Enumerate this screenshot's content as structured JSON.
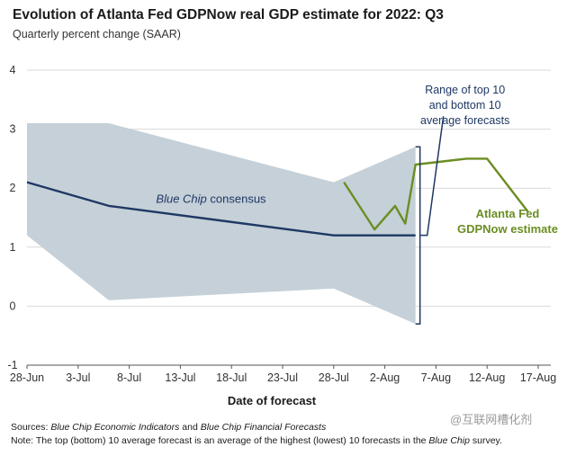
{
  "title": "Evolution of Atlanta Fed GDPNow real GDP estimate for 2022: Q3",
  "subtitle": "Quarterly percent change (SAAR)",
  "footnotes": {
    "sources_label": "Sources:",
    "sources_p1": "Blue Chip Economic Indicators",
    "sources_mid": " and ",
    "sources_p2": "Blue Chip Financial Forecasts",
    "note_label": "Note:",
    "note_text": "The top (bottom) 10 average forecast is an average of the highest (lowest) 10 forecasts in the",
    "note_italic": "Blue Chip",
    "note_end": "survey."
  },
  "watermark": "@互联网槽化剂",
  "chart_data": {
    "type": "line",
    "xlabel": "Date of forecast",
    "ylabel": "",
    "ylim": [
      -1,
      4
    ],
    "xlim": [
      "2022-06-28",
      "2022-08-19"
    ],
    "yticks": [
      -1,
      0,
      1,
      2,
      3,
      4
    ],
    "xticks": [
      {
        "date": "2022-06-28",
        "label": "28-Jun"
      },
      {
        "date": "2022-07-03",
        "label": "3-Jul"
      },
      {
        "date": "2022-07-08",
        "label": "8-Jul"
      },
      {
        "date": "2022-07-13",
        "label": "13-Jul"
      },
      {
        "date": "2022-07-18",
        "label": "18-Jul"
      },
      {
        "date": "2022-07-23",
        "label": "23-Jul"
      },
      {
        "date": "2022-07-28",
        "label": "28-Jul"
      },
      {
        "date": "2022-08-02",
        "label": "2-Aug"
      },
      {
        "date": "2022-08-07",
        "label": "7-Aug"
      },
      {
        "date": "2022-08-12",
        "label": "12-Aug"
      },
      {
        "date": "2022-08-17",
        "label": "17-Aug"
      }
    ],
    "grid": true,
    "band": {
      "upper": [
        {
          "x": "2022-06-28",
          "y": 3.1
        },
        {
          "x": "2022-07-06",
          "y": 3.1
        },
        {
          "x": "2022-07-28",
          "y": 2.1
        },
        {
          "x": "2022-08-05",
          "y": 2.7
        }
      ],
      "lower": [
        {
          "x": "2022-06-28",
          "y": 1.2
        },
        {
          "x": "2022-07-06",
          "y": 0.1
        },
        {
          "x": "2022-07-28",
          "y": 0.3
        },
        {
          "x": "2022-08-05",
          "y": -0.3
        }
      ],
      "color": "#c5d0d8",
      "annotation_lines": [
        "Range of top 10",
        "and bottom 10",
        "average forecasts"
      ]
    },
    "series": [
      {
        "name": "Blue Chip consensus",
        "color": "#1f3864",
        "points": [
          {
            "x": "2022-06-28",
            "y": 2.1
          },
          {
            "x": "2022-07-06",
            "y": 1.7
          },
          {
            "x": "2022-07-28",
            "y": 1.2
          },
          {
            "x": "2022-08-05",
            "y": 1.2
          }
        ]
      },
      {
        "name_lines": [
          "Atlanta Fed",
          "GDPNow estimate"
        ],
        "color": "#6b8e23",
        "points": [
          {
            "x": "2022-07-29",
            "y": 2.1
          },
          {
            "x": "2022-08-01",
            "y": 1.3
          },
          {
            "x": "2022-08-03",
            "y": 1.7
          },
          {
            "x": "2022-08-04",
            "y": 1.4
          },
          {
            "x": "2022-08-05",
            "y": 2.4
          },
          {
            "x": "2022-08-10",
            "y": 2.5
          },
          {
            "x": "2022-08-12",
            "y": 2.5
          },
          {
            "x": "2022-08-16",
            "y": 1.6
          }
        ]
      }
    ]
  }
}
